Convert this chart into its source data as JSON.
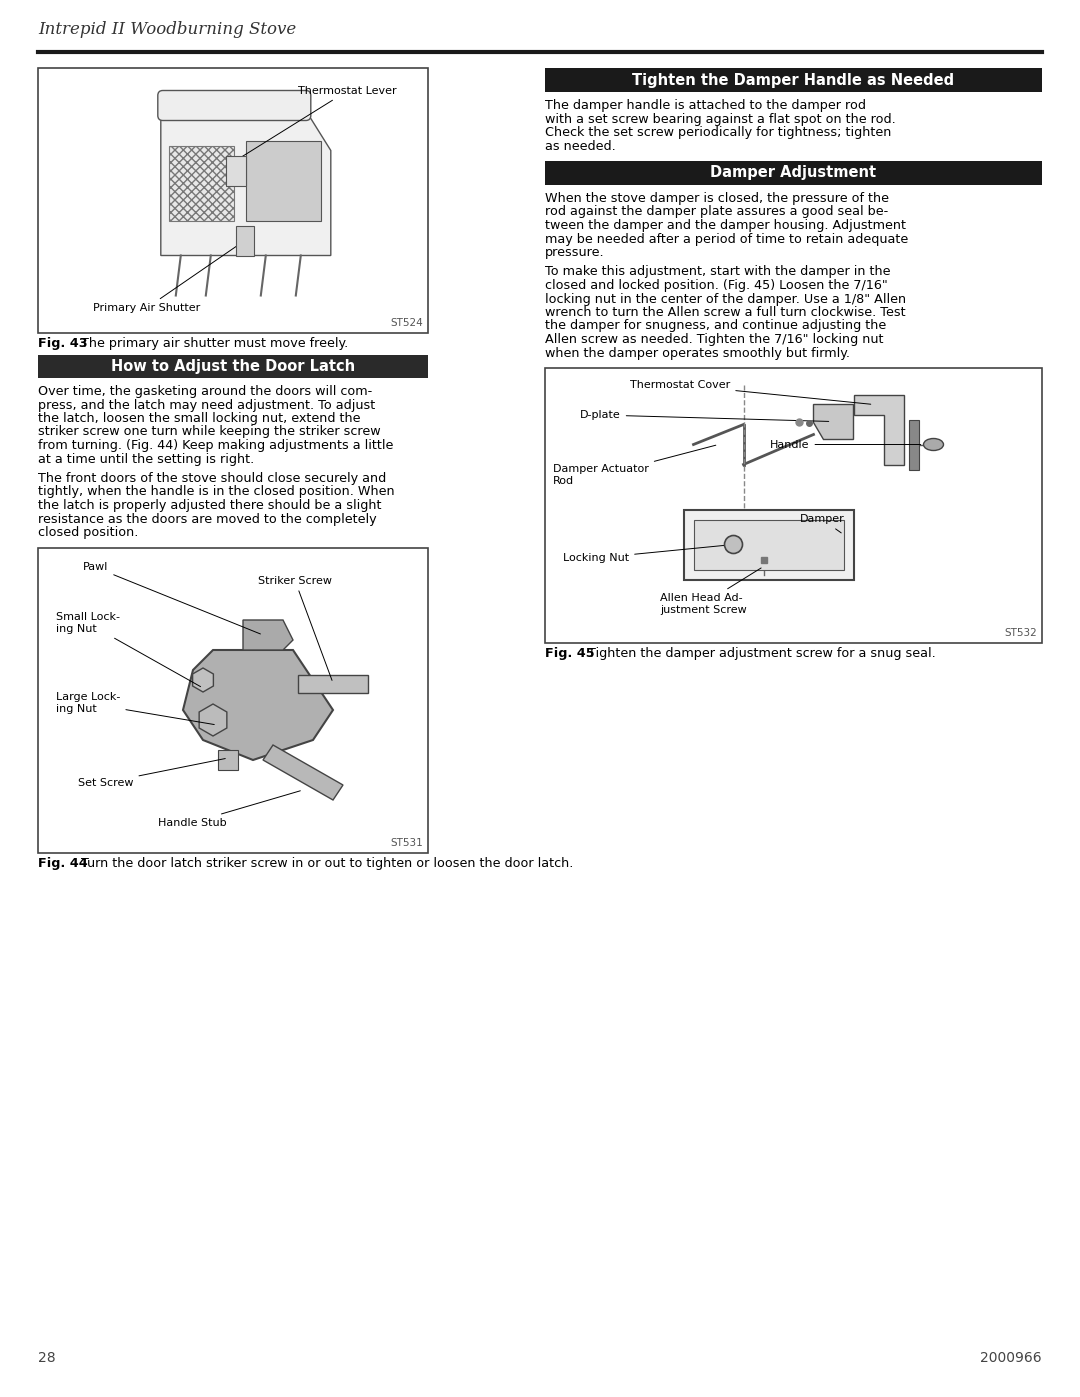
{
  "page_background": "#ffffff",
  "header_title": "Intrepid II Woodburning Stove",
  "page_number_left": "28",
  "page_number_right": "2000966",
  "section1_header": "How to Adjust the Door Latch",
  "section1_header_bg": "#2a2a2a",
  "section1_header_color": "#ffffff",
  "section2_header": "Tighten the Damper Handle as Needed",
  "section2_header_bg": "#1a1a1a",
  "section2_header_color": "#ffffff",
  "section3_header": "Damper Adjustment",
  "section3_header_bg": "#1a1a1a",
  "section3_header_color": "#ffffff",
  "fig43_caption_bold": "Fig. 43",
  "fig43_caption_rest": "  The primary air shutter must move freely.",
  "fig44_caption_bold": "Fig. 44",
  "fig44_caption_rest": "  Turn the door latch striker screw in or out to tighten or loosen the door latch.",
  "fig45_caption_bold": "Fig. 45",
  "fig45_caption_rest": "  Tighten the damper adjustment screw for a snug seal.",
  "fig43_label_thermostat": "Thermostat Lever",
  "fig43_label_airshutter": "Primary Air Shutter",
  "fig43_code": "ST524",
  "fig44_label_pawl": "Pawl",
  "fig44_label_smalllock": "Small Lock-\ning Nut",
  "fig44_label_largelock": "Large Lock-\ning Nut",
  "fig44_label_striker": "Striker Screw",
  "fig44_label_setscrew": "Set Screw",
  "fig44_label_handlestub": "Handle Stub",
  "fig44_code": "ST531",
  "fig45_label_thermostatcover": "Thermostat Cover",
  "fig45_label_dplate": "D-plate",
  "fig45_label_damperactuator": "Damper Actuator\nRod",
  "fig45_label_handle": "Handle",
  "fig45_label_damper": "Damper",
  "fig45_label_lockingnut": "Locking Nut",
  "fig45_label_allenhead": "Allen Head Ad-\njustment Screw",
  "fig45_code": "ST532",
  "para1_text": "Over time, the gasketing around the doors will com-\npress, and the latch may need adjustment. To adjust\nthe latch, loosen the small locking nut, extend the\nstriker screw one turn while keeping the striker screw\nfrom turning. (Fig. 44) Keep making adjustments a little\nat a time until the setting is right.",
  "para2_text": "The front doors of the stove should close securely and\ntightly, when the handle is in the closed position. When\nthe latch is properly adjusted there should be a slight\nresistance as the doors are moved to the completely\nclosed position.",
  "para3_text": "The damper handle is attached to the damper rod\nwith a set screw bearing against a flat spot on the rod.\nCheck the set screw periodically for tightness; tighten\nas needed.",
  "para4_text": "When the stove damper is closed, the pressure of the\nrod against the damper plate assures a good seal be-\ntween the damper and the damper housing. Adjustment\nmay be needed after a period of time to retain adequate\npressure.",
  "para5_text": "To make this adjustment, start with the damper in the\nclosed and locked position. (Fig. 45) Loosen the 7/16\"\nlocking nut in the center of the damper. Use a 1/8\" Allen\nwrench to turn the Allen screw a full turn clockwise. Test\nthe damper for snugness, and continue adjusting the\nAllen screw as needed. Tighten the 7/16\" locking nut\nwhen the damper operates smoothly but firmly.",
  "body_font_size": 9.2,
  "caption_font_size": 9.2,
  "header_font_size": 10.5,
  "label_font_size": 8.0
}
